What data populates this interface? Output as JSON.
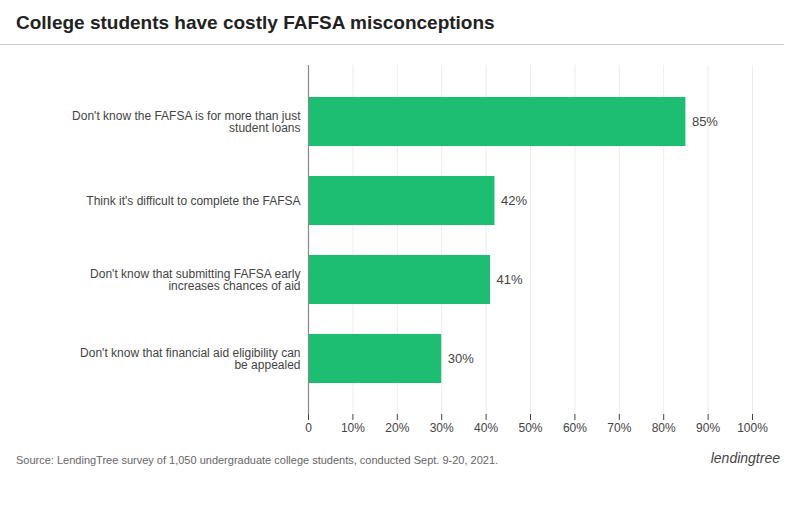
{
  "chart_data": {
    "type": "bar",
    "orientation": "horizontal",
    "title": "College students have costly FAFSA misconceptions",
    "caption": "Source: LendingTree survey of 1,050 undergraduate college students, conducted Sept. 9-20, 2021.",
    "annotations": [
      "lendingtree"
    ],
    "categories": [
      "Don't know that financial aid eligibility can\nbe appealed",
      "Don't know that submitting FAFSA early\nincreases chances of aid",
      "Think it's difficult to complete the FAFSA",
      "Don't know the FAFSA is for more than just\nstudent loans"
    ],
    "values": [
      30,
      41,
      42,
      85
    ],
    "value_labels": [
      "30%",
      "41%",
      "42%",
      "85%"
    ],
    "data_labels": true,
    "color": "#1dbe72",
    "xlim": [
      0,
      100
    ],
    "xticks": [
      0,
      {
        "value": 10,
        "label": "10%"
      },
      {
        "value": 20,
        "label": "20%"
      },
      {
        "value": 30,
        "label": "30%"
      },
      {
        "value": 40,
        "label": "40%"
      },
      {
        "value": 50,
        "label": "50%"
      },
      {
        "value": 60,
        "label": "60%"
      },
      {
        "value": 70,
        "label": "70%"
      },
      {
        "value": 80,
        "label": "80%"
      },
      {
        "value": 90,
        "label": "90%"
      },
      {
        "value": 100,
        "label": "100%"
      }
    ],
    "grid": true
  }
}
